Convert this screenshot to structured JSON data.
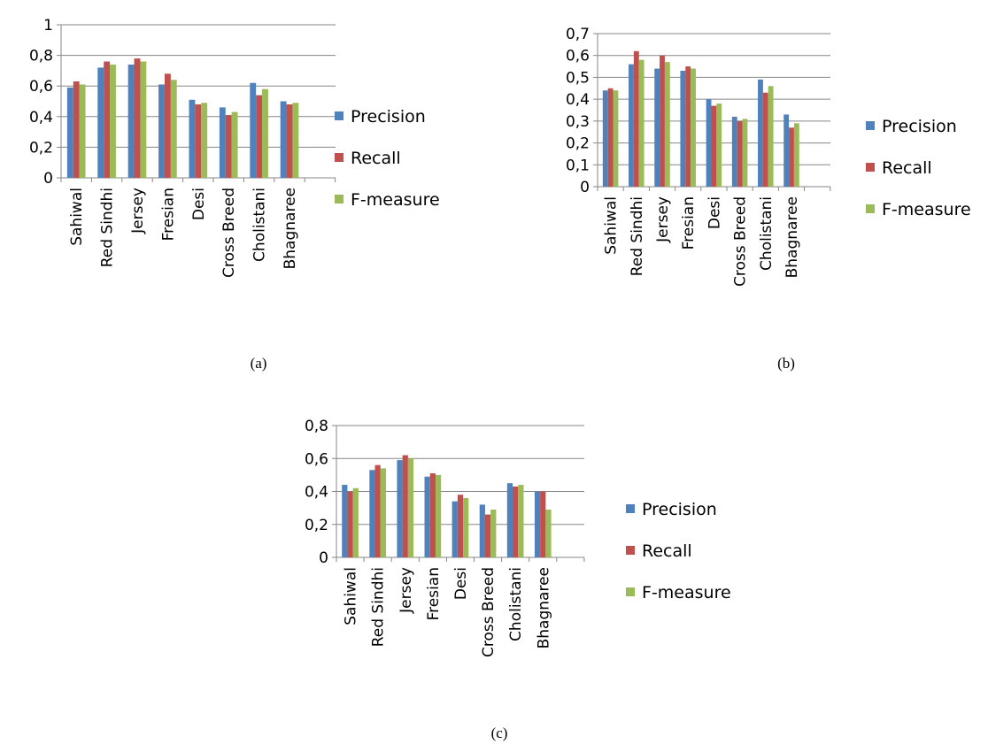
{
  "colors": {
    "precision": "#4F81BD",
    "recall": "#C0504D",
    "fmeasure": "#9BBB59",
    "grid": "#868686",
    "axis": "#868686"
  },
  "chart_data": [
    {
      "type": "bar",
      "caption": "(a)",
      "categories": [
        "Sahiwal",
        "Red Sindhi",
        "Jersey",
        "Fresian",
        "Desi",
        "Cross Breed",
        "Cholistani",
        "Bhagnaree"
      ],
      "series": [
        {
          "name": "Precision",
          "values": [
            0.59,
            0.72,
            0.74,
            0.61,
            0.51,
            0.46,
            0.62,
            0.5
          ]
        },
        {
          "name": "Recall",
          "values": [
            0.63,
            0.76,
            0.78,
            0.68,
            0.48,
            0.41,
            0.54,
            0.48
          ]
        },
        {
          "name": "F-measure",
          "values": [
            0.61,
            0.74,
            0.76,
            0.64,
            0.49,
            0.43,
            0.58,
            0.49
          ]
        }
      ],
      "ylim": [
        0,
        1
      ],
      "yticks": [
        "0",
        "0,2",
        "0,4",
        "0,6",
        "0,8",
        "1"
      ],
      "grid": true,
      "legend": "right"
    },
    {
      "type": "bar",
      "caption": "(b)",
      "categories": [
        "Sahiwal",
        "Red Sindhi",
        "Jersey",
        "Fresian",
        "Desi",
        "Cross Breed",
        "Cholistani",
        "Bhagnaree"
      ],
      "series": [
        {
          "name": "Precision",
          "values": [
            0.44,
            0.56,
            0.54,
            0.53,
            0.4,
            0.32,
            0.49,
            0.33
          ]
        },
        {
          "name": "Recall",
          "values": [
            0.45,
            0.62,
            0.6,
            0.55,
            0.37,
            0.3,
            0.43,
            0.27
          ]
        },
        {
          "name": "F-measure",
          "values": [
            0.44,
            0.58,
            0.57,
            0.54,
            0.38,
            0.31,
            0.46,
            0.29
          ]
        }
      ],
      "ylim": [
        0,
        0.7
      ],
      "yticks": [
        "0",
        "0,1",
        "0,2",
        "0,3",
        "0,4",
        "0,5",
        "0,6",
        "0,7"
      ],
      "grid": true,
      "legend": "right"
    },
    {
      "type": "bar",
      "caption": "(c)",
      "categories": [
        "Sahiwal",
        "Red Sindhi",
        "Jersey",
        "Fresian",
        "Desi",
        "Cross Breed",
        "Cholistani",
        "Bhagnaree"
      ],
      "series": [
        {
          "name": "Precision",
          "values": [
            0.44,
            0.53,
            0.59,
            0.49,
            0.34,
            0.32,
            0.45,
            0.4
          ]
        },
        {
          "name": "Recall",
          "values": [
            0.4,
            0.56,
            0.62,
            0.51,
            0.38,
            0.26,
            0.43,
            0.4
          ]
        },
        {
          "name": "F-measure",
          "values": [
            0.42,
            0.54,
            0.6,
            0.5,
            0.36,
            0.29,
            0.44,
            0.29
          ]
        }
      ],
      "ylim": [
        0,
        0.8
      ],
      "yticks": [
        "0",
        "0,2",
        "0,4",
        "0,6",
        "0,8"
      ],
      "grid": true,
      "legend": "right"
    }
  ]
}
